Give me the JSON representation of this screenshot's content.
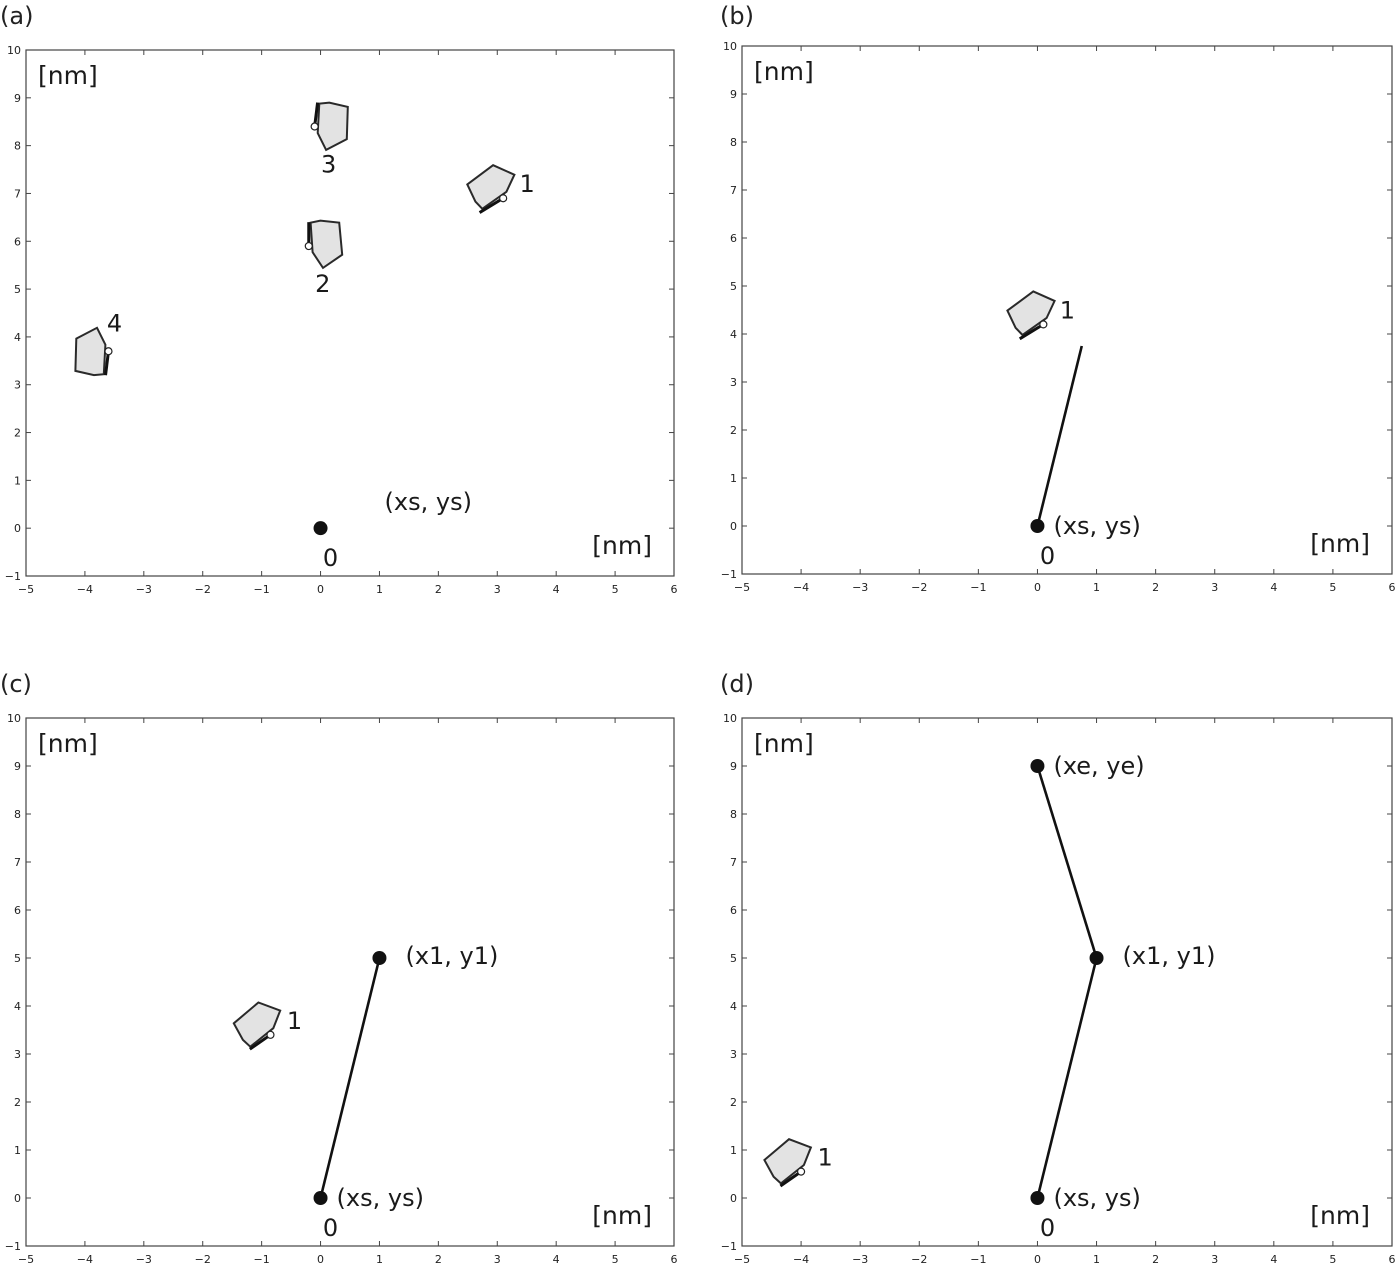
{
  "chart_data": [
    {
      "panel": "(a)",
      "type": "scatter",
      "xlim": [
        -5,
        6
      ],
      "ylim": [
        -1,
        10
      ],
      "x_ticks": [
        -5,
        -4,
        -3,
        -2,
        -1,
        0,
        1,
        2,
        3,
        4,
        5,
        6
      ],
      "y_ticks": [
        -1,
        0,
        1,
        2,
        3,
        4,
        5,
        6,
        7,
        8,
        9,
        10
      ],
      "y_unit": "[nm]",
      "x_unit": "[nm]",
      "points": [
        {
          "x": 0,
          "y": 0,
          "label": "0",
          "tag": "(xs, ys)"
        }
      ],
      "molecules": [
        {
          "id": "1",
          "x": 3.1,
          "y": 6.9,
          "ex": 2.7,
          "ey": 6.6
        },
        {
          "id": "2",
          "x": -0.2,
          "y": 5.9,
          "ex": -0.2,
          "ey": 6.4
        },
        {
          "id": "3",
          "x": -0.1,
          "y": 8.4,
          "ex": -0.05,
          "ey": 8.9
        },
        {
          "id": "4",
          "x": -3.6,
          "y": 3.7,
          "ex": -3.65,
          "ey": 3.2
        }
      ],
      "lines": []
    },
    {
      "panel": "(b)",
      "type": "line",
      "xlim": [
        -5,
        6
      ],
      "ylim": [
        -1,
        10
      ],
      "x_ticks": [
        -5,
        -4,
        -3,
        -2,
        -1,
        0,
        1,
        2,
        3,
        4,
        5,
        6
      ],
      "y_ticks": [
        -1,
        0,
        1,
        2,
        3,
        4,
        5,
        6,
        7,
        8,
        9,
        10
      ],
      "y_unit": "[nm]",
      "x_unit": "[nm]",
      "points": [
        {
          "x": 0,
          "y": 0,
          "label": "0",
          "tag": "(xs, ys)"
        }
      ],
      "molecules": [
        {
          "id": "1",
          "x": 0.1,
          "y": 4.2,
          "ex": -0.3,
          "ey": 3.9
        }
      ],
      "lines": [
        {
          "x1": 0,
          "y1": 0,
          "x2": 0.75,
          "y2": 3.75
        }
      ]
    },
    {
      "panel": "(c)",
      "type": "line",
      "xlim": [
        -5,
        6
      ],
      "ylim": [
        -1,
        10
      ],
      "x_ticks": [
        -5,
        -4,
        -3,
        -2,
        -1,
        0,
        1,
        2,
        3,
        4,
        5,
        6
      ],
      "y_ticks": [
        -1,
        0,
        1,
        2,
        3,
        4,
        5,
        6,
        7,
        8,
        9,
        10
      ],
      "y_unit": "[nm]",
      "x_unit": "[nm]",
      "points": [
        {
          "x": 0,
          "y": 0,
          "label": "0",
          "tag": "(xs, ys)"
        },
        {
          "x": 1,
          "y": 5,
          "label": "",
          "tag": "(x1, y1)"
        }
      ],
      "molecules": [
        {
          "id": "1",
          "x": -0.85,
          "y": 3.4,
          "ex": -1.2,
          "ey": 3.1
        }
      ],
      "lines": [
        {
          "x1": 0,
          "y1": 0,
          "x2": 1,
          "y2": 5
        }
      ]
    },
    {
      "panel": "(d)",
      "type": "line",
      "xlim": [
        -5,
        6
      ],
      "ylim": [
        -1,
        10
      ],
      "x_ticks": [
        -5,
        -4,
        -3,
        -2,
        -1,
        0,
        1,
        2,
        3,
        4,
        5,
        6
      ],
      "y_ticks": [
        -1,
        0,
        1,
        2,
        3,
        4,
        5,
        6,
        7,
        8,
        9,
        10
      ],
      "y_unit": "[nm]",
      "x_unit": "[nm]",
      "points": [
        {
          "x": 0,
          "y": 0,
          "label": "0",
          "tag": "(xs, ys)"
        },
        {
          "x": 1,
          "y": 5,
          "label": "",
          "tag": "(x1, y1)"
        },
        {
          "x": 0,
          "y": 9,
          "label": "",
          "tag": "(xe, ye)"
        }
      ],
      "molecules": [
        {
          "id": "1",
          "x": -4.0,
          "y": 0.55,
          "ex": -4.35,
          "ey": 0.25
        }
      ],
      "lines": [
        {
          "x1": 0,
          "y1": 0,
          "x2": 1,
          "y2": 5
        },
        {
          "x1": 1,
          "y1": 5,
          "x2": 0,
          "y2": 9
        }
      ]
    }
  ]
}
